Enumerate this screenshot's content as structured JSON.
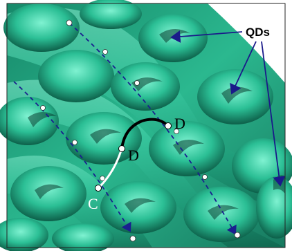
{
  "figure": {
    "labels": {
      "qds": "QDs",
      "c": "C",
      "d_lower": "D",
      "d_upper": "D"
    },
    "colors": {
      "surface_dark": "#0b5a45",
      "surface_mid": "#1f9b77",
      "surface_light": "#4fd7b1",
      "dashed_path": "#1a1f8f",
      "arrow": "#1a1a8a",
      "qd_label": "#000000",
      "path_white": "#ffffff",
      "path_black": "#000000"
    },
    "icons": {
      "qd_arrow": "arrow-icon",
      "dashed_trajectory": "dashed-arrow-icon",
      "marker": "circle-marker-icon"
    }
  }
}
